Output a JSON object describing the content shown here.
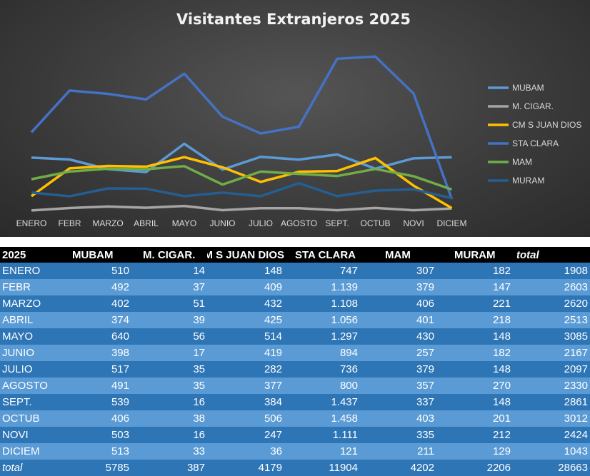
{
  "chart_data": {
    "type": "line",
    "title": "Visitantes Extranjeros 2025",
    "categories": [
      "ENERO",
      "FEBR",
      "MARZO",
      "ABRIL",
      "MAYO",
      "JUNIO",
      "JULIO",
      "AGOSTO",
      "SEPT.",
      "OCTUB",
      "NOVI",
      "DICIEM"
    ],
    "ylim": [
      0,
      1600
    ],
    "legend": "right",
    "grid": false,
    "series": [
      {
        "name": "MUBAM",
        "color": "#5b9bd5",
        "values": [
          510,
          492,
          402,
          374,
          640,
          398,
          517,
          491,
          539,
          406,
          503,
          513
        ]
      },
      {
        "name": "M. CIGAR.",
        "color": "#a5a5a5",
        "values": [
          14,
          37,
          51,
          39,
          56,
          17,
          35,
          35,
          16,
          38,
          16,
          33
        ]
      },
      {
        "name": "CM S JUAN DIOS",
        "color": "#ffc000",
        "values": [
          148,
          409,
          432,
          425,
          514,
          419,
          282,
          377,
          384,
          506,
          247,
          36
        ]
      },
      {
        "name": "STA CLARA",
        "color": "#4472c4",
        "values": [
          747,
          1139,
          1108,
          1056,
          1297,
          894,
          736,
          800,
          1437,
          1458,
          1111,
          121
        ]
      },
      {
        "name": "MAM",
        "color": "#70ad47",
        "values": [
          307,
          379,
          406,
          401,
          430,
          257,
          379,
          357,
          337,
          403,
          335,
          211
        ]
      },
      {
        "name": "MURAM",
        "color": "#255e91",
        "values": [
          182,
          147,
          221,
          218,
          148,
          182,
          148,
          270,
          148,
          201,
          212,
          129
        ]
      }
    ]
  },
  "table": {
    "headers": [
      "2025",
      "MUBAM",
      "M. CIGAR.",
      "CM S JUAN DIOS",
      "STA CLARA",
      "MAM",
      "MURAM",
      "total"
    ],
    "rows": [
      [
        "ENERO",
        "510",
        "14",
        "148",
        "747",
        "307",
        "182",
        "1908"
      ],
      [
        "FEBR",
        "492",
        "37",
        "409",
        "1.139",
        "379",
        "147",
        "2603"
      ],
      [
        "MARZO",
        "402",
        "51",
        "432",
        "1.108",
        "406",
        "221",
        "2620"
      ],
      [
        "ABRIL",
        "374",
        "39",
        "425",
        "1.056",
        "401",
        "218",
        "2513"
      ],
      [
        "MAYO",
        "640",
        "56",
        "514",
        "1.297",
        "430",
        "148",
        "3085"
      ],
      [
        "JUNIO",
        "398",
        "17",
        "419",
        "894",
        "257",
        "182",
        "2167"
      ],
      [
        "JULIO",
        "517",
        "35",
        "282",
        "736",
        "379",
        "148",
        "2097"
      ],
      [
        "AGOSTO",
        "491",
        "35",
        "377",
        "800",
        "357",
        "270",
        "2330"
      ],
      [
        "SEPT.",
        "539",
        "16",
        "384",
        "1.437",
        "337",
        "148",
        "2861"
      ],
      [
        "OCTUB",
        "406",
        "38",
        "506",
        "1.458",
        "403",
        "201",
        "3012"
      ],
      [
        "NOVI",
        "503",
        "16",
        "247",
        "1.111",
        "335",
        "212",
        "2424"
      ],
      [
        "DICIEM",
        "513",
        "33",
        "36",
        "121",
        "211",
        "129",
        "1043"
      ],
      [
        "total",
        "5785",
        "387",
        "4179",
        "11904",
        "4202",
        "2206",
        "28663"
      ]
    ]
  }
}
